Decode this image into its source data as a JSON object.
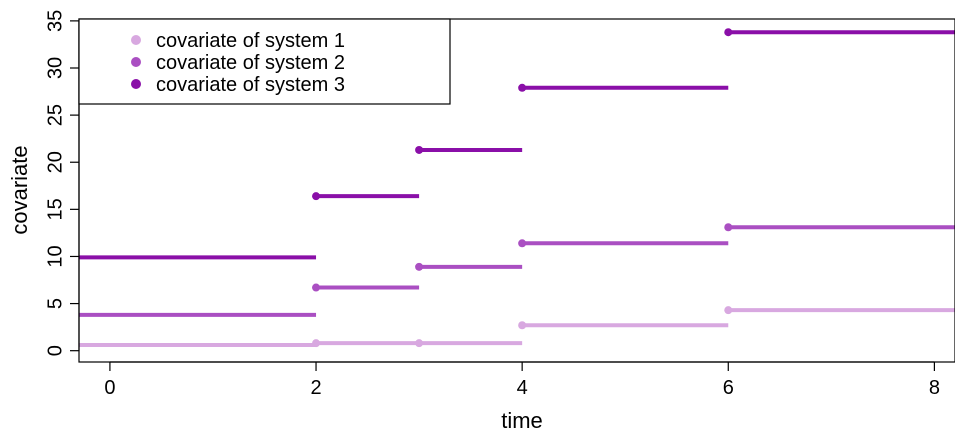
{
  "chart_data": {
    "type": "step",
    "xlabel": "time",
    "ylabel": "covariate",
    "xlim": [
      -0.3,
      8.2
    ],
    "ylim": [
      -1.2,
      35.2
    ],
    "x_ticks": [
      "0",
      "2",
      "4",
      "6",
      "8"
    ],
    "y_ticks": [
      "0",
      "5",
      "10",
      "15",
      "20",
      "25",
      "30",
      "35"
    ],
    "grid": false,
    "legend_position": "top-left",
    "series": [
      {
        "name": "covariate of system 1",
        "color": "#D8A8E0",
        "segments": [
          {
            "x0": -0.3,
            "x1": 2,
            "y": 0.6
          },
          {
            "x0": 2,
            "x1": 3,
            "y": 0.8
          },
          {
            "x0": 3,
            "x1": 4,
            "y": 0.8
          },
          {
            "x0": 4,
            "x1": 6,
            "y": 2.7
          },
          {
            "x0": 6,
            "x1": 8.2,
            "y": 4.3
          }
        ],
        "points": [
          {
            "x": 2,
            "y": 0.8
          },
          {
            "x": 3,
            "y": 0.8
          },
          {
            "x": 4,
            "y": 2.7
          },
          {
            "x": 6,
            "y": 4.3
          }
        ]
      },
      {
        "name": "covariate of system 2",
        "color": "#AA4FC2",
        "segments": [
          {
            "x0": -0.3,
            "x1": 2,
            "y": 3.8
          },
          {
            "x0": 2,
            "x1": 3,
            "y": 6.7
          },
          {
            "x0": 3,
            "x1": 4,
            "y": 8.9
          },
          {
            "x0": 4,
            "x1": 6,
            "y": 11.4
          },
          {
            "x0": 6,
            "x1": 8.2,
            "y": 13.1
          }
        ],
        "points": [
          {
            "x": 2,
            "y": 6.7
          },
          {
            "x": 3,
            "y": 8.9
          },
          {
            "x": 4,
            "y": 11.4
          },
          {
            "x": 6,
            "y": 13.1
          }
        ]
      },
      {
        "name": "covariate of system 3",
        "color": "#8A0FA8",
        "segments": [
          {
            "x0": -0.3,
            "x1": 2,
            "y": 9.9
          },
          {
            "x0": 2,
            "x1": 3,
            "y": 16.4
          },
          {
            "x0": 3,
            "x1": 4,
            "y": 21.3
          },
          {
            "x0": 4,
            "x1": 6,
            "y": 27.9
          },
          {
            "x0": 6,
            "x1": 8.2,
            "y": 33.8
          }
        ],
        "points": [
          {
            "x": 2,
            "y": 16.4
          },
          {
            "x": 3,
            "y": 21.3
          },
          {
            "x": 4,
            "y": 27.9
          },
          {
            "x": 6,
            "y": 33.8
          }
        ]
      }
    ]
  }
}
